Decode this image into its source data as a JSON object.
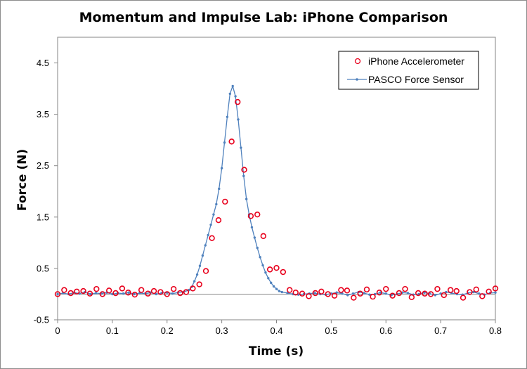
{
  "chart_data": {
    "type": "scatter",
    "title": "Momentum and Impulse Lab: iPhone Comparison",
    "xlabel": "Time (s)",
    "ylabel": "Force (N)",
    "xlim": [
      0,
      0.8
    ],
    "ylim": [
      -0.5,
      5.0
    ],
    "x_ticks": [
      0,
      0.1,
      0.2,
      0.3,
      0.4,
      0.5,
      0.6,
      0.7,
      0.8
    ],
    "x_tick_labels": [
      "0",
      "0.1",
      "0.2",
      "0.3",
      "0.4",
      "0.5",
      "0.6",
      "0.7",
      "0.8"
    ],
    "y_ticks": [
      -0.5,
      0.5,
      1.5,
      2.5,
      3.5,
      4.5
    ],
    "y_tick_labels": [
      "-0.5",
      "0.5",
      "1.5",
      "2.5",
      "3.5",
      "4.5"
    ],
    "grid": false,
    "legend_position": "top-right",
    "series": [
      {
        "name": "iPhone Accelerometer",
        "style": "markers",
        "color": "#e8001c",
        "x": [
          0.0,
          0.012,
          0.024,
          0.035,
          0.047,
          0.059,
          0.071,
          0.082,
          0.094,
          0.106,
          0.118,
          0.129,
          0.141,
          0.153,
          0.165,
          0.176,
          0.188,
          0.2,
          0.212,
          0.224,
          0.235,
          0.247,
          0.259,
          0.271,
          0.282,
          0.294,
          0.306,
          0.318,
          0.329,
          0.341,
          0.353,
          0.365,
          0.376,
          0.388,
          0.4,
          0.412,
          0.424,
          0.435,
          0.447,
          0.459,
          0.471,
          0.482,
          0.494,
          0.506,
          0.518,
          0.529,
          0.541,
          0.553,
          0.565,
          0.576,
          0.588,
          0.6,
          0.612,
          0.624,
          0.635,
          0.647,
          0.659,
          0.671,
          0.682,
          0.694,
          0.706,
          0.718,
          0.729,
          0.741,
          0.753,
          0.765,
          0.776,
          0.788,
          0.8
        ],
        "y": [
          0.0,
          0.08,
          0.02,
          0.05,
          0.06,
          0.01,
          0.1,
          0.0,
          0.07,
          0.02,
          0.11,
          0.03,
          -0.01,
          0.08,
          0.01,
          0.06,
          0.04,
          0.0,
          0.1,
          0.02,
          0.04,
          0.11,
          0.19,
          0.45,
          1.09,
          1.44,
          1.8,
          2.97,
          3.74,
          2.42,
          1.52,
          1.55,
          1.13,
          0.48,
          0.51,
          0.43,
          0.08,
          0.03,
          0.01,
          -0.04,
          0.02,
          0.05,
          0.0,
          -0.03,
          0.08,
          0.07,
          -0.07,
          0.01,
          0.09,
          -0.05,
          0.03,
          0.1,
          -0.03,
          0.02,
          0.1,
          -0.06,
          0.02,
          0.01,
          0.0,
          0.1,
          -0.02,
          0.08,
          0.06,
          -0.07,
          0.04,
          0.09,
          -0.04,
          0.05,
          0.11
        ]
      },
      {
        "name": "PASCO Force Sensor",
        "style": "line-markers",
        "color": "#4f81bd",
        "x": [
          0.0,
          0.01,
          0.02,
          0.03,
          0.04,
          0.05,
          0.06,
          0.07,
          0.08,
          0.09,
          0.1,
          0.11,
          0.12,
          0.13,
          0.14,
          0.15,
          0.16,
          0.17,
          0.18,
          0.19,
          0.2,
          0.21,
          0.22,
          0.23,
          0.24,
          0.245,
          0.25,
          0.255,
          0.26,
          0.265,
          0.27,
          0.275,
          0.28,
          0.285,
          0.29,
          0.295,
          0.3,
          0.305,
          0.31,
          0.315,
          0.32,
          0.325,
          0.33,
          0.335,
          0.34,
          0.345,
          0.35,
          0.355,
          0.36,
          0.365,
          0.37,
          0.375,
          0.38,
          0.385,
          0.39,
          0.395,
          0.4,
          0.405,
          0.41,
          0.42,
          0.43,
          0.44,
          0.45,
          0.46,
          0.47,
          0.48,
          0.49,
          0.5,
          0.51,
          0.52,
          0.53,
          0.54,
          0.55,
          0.56,
          0.57,
          0.58,
          0.59,
          0.6,
          0.61,
          0.62,
          0.63,
          0.64,
          0.65,
          0.66,
          0.67,
          0.68,
          0.69,
          0.7,
          0.71,
          0.72,
          0.73,
          0.74,
          0.75,
          0.76,
          0.77,
          0.78,
          0.79,
          0.8
        ],
        "y": [
          0.0,
          0.02,
          0.0,
          0.03,
          0.01,
          0.04,
          0.0,
          0.02,
          0.01,
          0.03,
          0.0,
          0.02,
          0.01,
          0.03,
          0.0,
          0.02,
          0.01,
          0.03,
          0.0,
          0.02,
          0.03,
          0.01,
          0.03,
          0.04,
          0.08,
          0.14,
          0.25,
          0.38,
          0.55,
          0.75,
          0.95,
          1.15,
          1.35,
          1.55,
          1.75,
          2.05,
          2.45,
          2.95,
          3.45,
          3.9,
          4.05,
          3.85,
          3.4,
          2.85,
          2.3,
          1.85,
          1.55,
          1.3,
          1.1,
          0.9,
          0.72,
          0.56,
          0.42,
          0.31,
          0.22,
          0.15,
          0.1,
          0.06,
          0.04,
          0.02,
          0.0,
          -0.01,
          0.0,
          0.01,
          0.02,
          0.0,
          -0.01,
          0.01,
          0.03,
          0.01,
          -0.02,
          0.01,
          0.04,
          0.02,
          -0.01,
          0.0,
          0.03,
          0.01,
          -0.02,
          0.0,
          0.03,
          0.02,
          -0.01,
          0.0,
          0.03,
          0.01,
          -0.02,
          0.01,
          0.04,
          0.02,
          0.0,
          -0.01,
          0.02,
          0.04,
          0.01,
          -0.01,
          0.02,
          0.03
        ]
      }
    ]
  }
}
